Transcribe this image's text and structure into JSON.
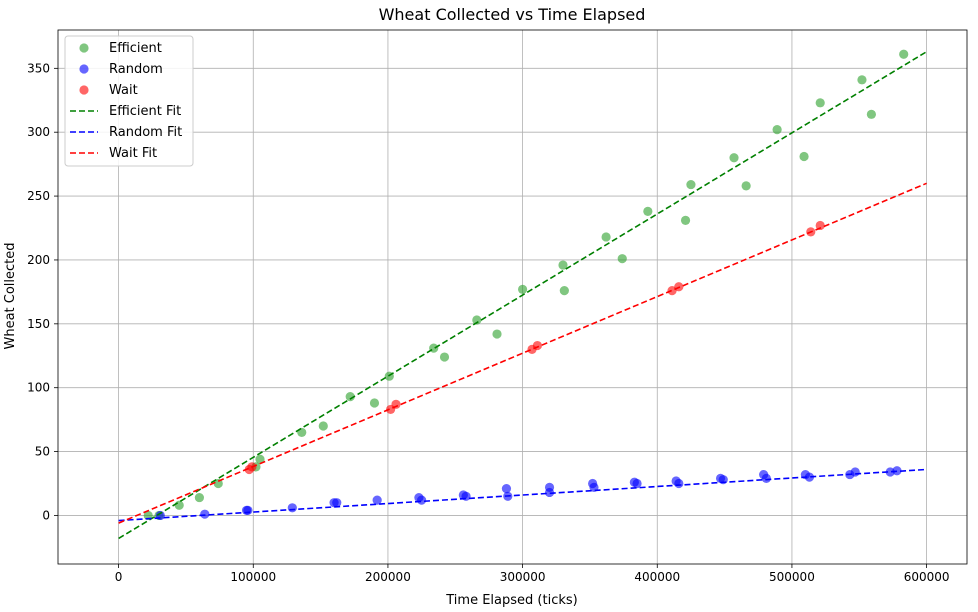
{
  "chart_data": {
    "type": "scatter",
    "title": "Wheat Collected vs Time Elapsed",
    "xlabel": "Time Elapsed (ticks)",
    "ylabel": "Wheat Collected",
    "xlim": [
      -45000,
      630000
    ],
    "ylim": [
      -38,
      380
    ],
    "xticks": [
      0,
      100000,
      200000,
      300000,
      400000,
      500000,
      600000
    ],
    "yticks": [
      0,
      50,
      100,
      150,
      200,
      250,
      300,
      350
    ],
    "grid": true,
    "legend_position": "top-left",
    "series": [
      {
        "name": "Efficient",
        "kind": "scatter",
        "color": "#2ca02c",
        "points": [
          [
            22000,
            0
          ],
          [
            30000,
            0
          ],
          [
            45000,
            8
          ],
          [
            60000,
            14
          ],
          [
            74000,
            25
          ],
          [
            102000,
            38
          ],
          [
            105000,
            44
          ],
          [
            136000,
            65
          ],
          [
            152000,
            70
          ],
          [
            172000,
            93
          ],
          [
            190000,
            88
          ],
          [
            201000,
            109
          ],
          [
            234000,
            131
          ],
          [
            242000,
            124
          ],
          [
            266000,
            153
          ],
          [
            281000,
            142
          ],
          [
            300000,
            177
          ],
          [
            330000,
            196
          ],
          [
            331000,
            176
          ],
          [
            362000,
            218
          ],
          [
            374000,
            201
          ],
          [
            393000,
            238
          ],
          [
            421000,
            231
          ],
          [
            425000,
            259
          ],
          [
            457000,
            280
          ],
          [
            466000,
            258
          ],
          [
            489000,
            302
          ],
          [
            509000,
            281
          ],
          [
            521000,
            323
          ],
          [
            552000,
            341
          ],
          [
            559000,
            314
          ],
          [
            583000,
            361
          ]
        ]
      },
      {
        "name": "Random",
        "kind": "scatter",
        "color": "#0000ff",
        "points": [
          [
            31000,
            0
          ],
          [
            64000,
            1
          ],
          [
            95000,
            4
          ],
          [
            96000,
            4
          ],
          [
            129000,
            6
          ],
          [
            160000,
            10
          ],
          [
            162000,
            10
          ],
          [
            192000,
            12
          ],
          [
            223000,
            14
          ],
          [
            225000,
            12
          ],
          [
            256000,
            16
          ],
          [
            258000,
            15
          ],
          [
            288000,
            21
          ],
          [
            289000,
            15
          ],
          [
            320000,
            22
          ],
          [
            320000,
            18
          ],
          [
            352000,
            25
          ],
          [
            353000,
            22
          ],
          [
            383000,
            26
          ],
          [
            385000,
            25
          ],
          [
            414000,
            27
          ],
          [
            416000,
            25
          ],
          [
            447000,
            29
          ],
          [
            449000,
            28
          ],
          [
            479000,
            32
          ],
          [
            481000,
            29
          ],
          [
            510000,
            32
          ],
          [
            513000,
            30
          ],
          [
            543000,
            32
          ],
          [
            547000,
            34
          ],
          [
            573000,
            34
          ],
          [
            578000,
            35
          ]
        ]
      },
      {
        "name": "Wait",
        "kind": "scatter",
        "color": "#ff0000",
        "points": [
          [
            97000,
            36
          ],
          [
            99000,
            38
          ],
          [
            202000,
            83
          ],
          [
            206000,
            87
          ],
          [
            307000,
            130
          ],
          [
            311000,
            133
          ],
          [
            411000,
            176
          ],
          [
            416000,
            179
          ],
          [
            514000,
            222
          ],
          [
            521000,
            227
          ]
        ]
      },
      {
        "name": "Efficient Fit",
        "kind": "line",
        "style": "dashed",
        "color": "#008000",
        "x": [
          0,
          600000
        ],
        "y": [
          -18,
          363
        ]
      },
      {
        "name": "Random Fit",
        "kind": "line",
        "style": "dashed",
        "color": "#0000ff",
        "x": [
          0,
          600000
        ],
        "y": [
          -4,
          36
        ]
      },
      {
        "name": "Wait Fit",
        "kind": "line",
        "style": "dashed",
        "color": "#ff0000",
        "x": [
          0,
          600000
        ],
        "y": [
          -6,
          260
        ]
      }
    ]
  }
}
